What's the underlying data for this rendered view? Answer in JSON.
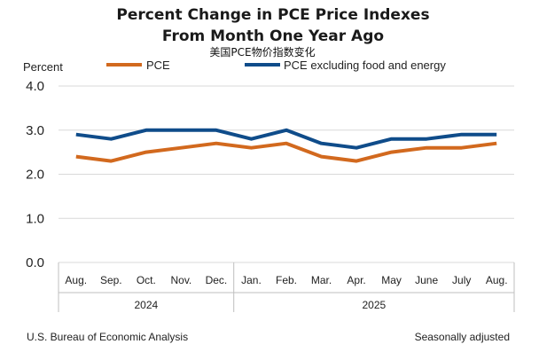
{
  "chart_data": {
    "type": "line",
    "title_line1": "Percent Change in PCE Price Indexes",
    "title_line2": "From Month One Year Ago",
    "subtitle": "美国PCE物价指数变化",
    "ylabel": "Percent",
    "ylim": [
      0,
      4
    ],
    "yticks": [
      "0.0",
      "1.0",
      "2.0",
      "3.0",
      "4.0"
    ],
    "grid": true,
    "categories": [
      "Aug.",
      "Sep.",
      "Oct.",
      "Nov.",
      "Dec.",
      "Jan.",
      "Feb.",
      "Mar.",
      "Apr.",
      "May",
      "June",
      "July",
      "Aug."
    ],
    "year_groups": [
      {
        "label": "2024",
        "start": 0,
        "end": 4
      },
      {
        "label": "2025",
        "start": 5,
        "end": 12
      }
    ],
    "series": [
      {
        "name": "PCE",
        "color": "#d2691e",
        "values": [
          2.4,
          2.3,
          2.5,
          2.6,
          2.7,
          2.6,
          2.7,
          2.4,
          2.3,
          2.5,
          2.6,
          2.6,
          2.7
        ]
      },
      {
        "name": "PCE excluding food and energy",
        "color": "#0f4c8a",
        "values": [
          2.9,
          2.8,
          3.0,
          3.0,
          3.0,
          2.8,
          3.0,
          2.7,
          2.6,
          2.8,
          2.8,
          2.9,
          2.9
        ]
      }
    ],
    "source": "U.S. Bureau of Economic Analysis",
    "note": "Seasonally adjusted"
  }
}
